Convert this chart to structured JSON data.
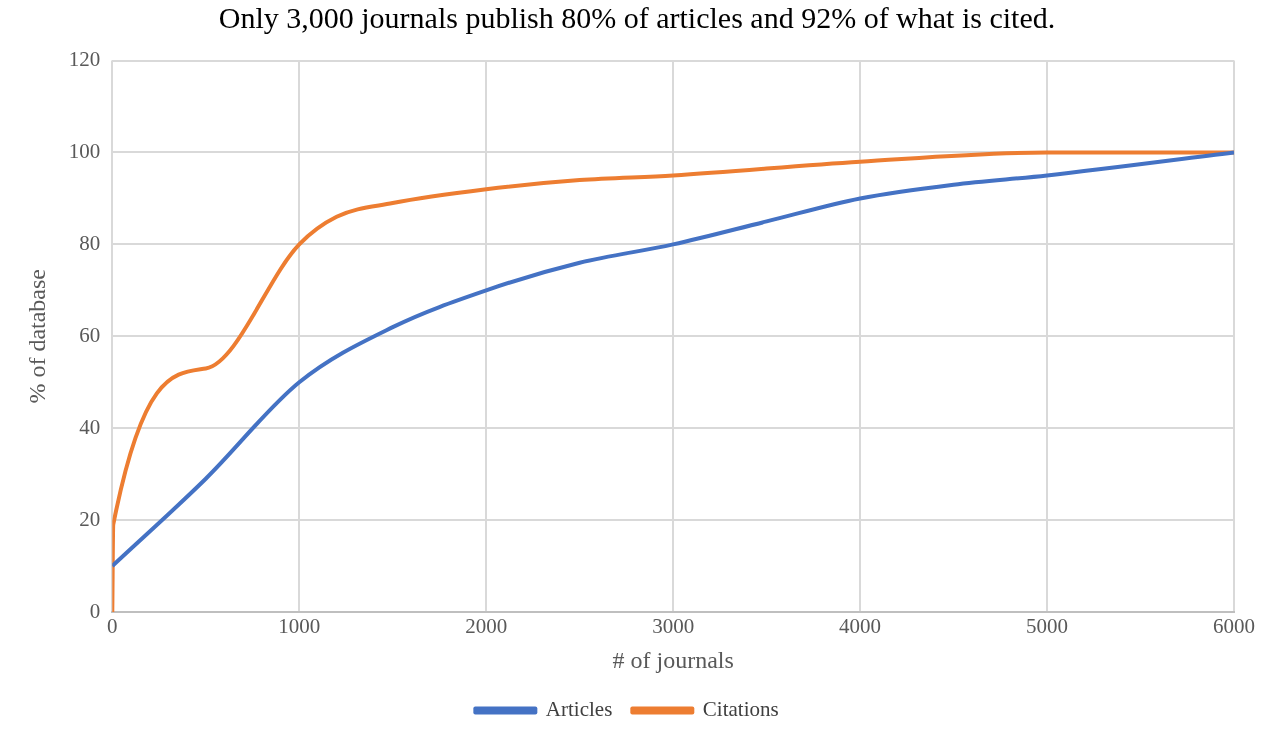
{
  "chart_data": {
    "type": "line",
    "title": "Only 3,000 journals publish 80% of articles and 92% of what is cited.",
    "xlabel": "# of journals",
    "ylabel": "% of database",
    "xlim": [
      0,
      6000
    ],
    "xticks": [
      0,
      1000,
      2000,
      3000,
      4000,
      5000,
      6000
    ],
    "ylim": [
      0,
      120
    ],
    "yticks": [
      0,
      20,
      40,
      60,
      80,
      100,
      120
    ],
    "grid": true,
    "legend": "bottom",
    "marker": "none",
    "line_style": "solid",
    "series": [
      {
        "name": "Articles",
        "color": "#4472c4",
        "x": [
          0,
          500,
          1000,
          1500,
          2000,
          2500,
          3000,
          3500,
          4000,
          4500,
          5000,
          6000
        ],
        "values": [
          10,
          29,
          50,
          62,
          70,
          76,
          80,
          85,
          90,
          93,
          95,
          100
        ]
      },
      {
        "name": "Citations",
        "color": "#ed7d31",
        "x": [
          0,
          5,
          500,
          1000,
          1200,
          1500,
          2000,
          2500,
          3000,
          4000,
          5000,
          6000
        ],
        "values": [
          0,
          19,
          53,
          80,
          86,
          89,
          92,
          94,
          95,
          98,
          100,
          100
        ]
      }
    ]
  }
}
